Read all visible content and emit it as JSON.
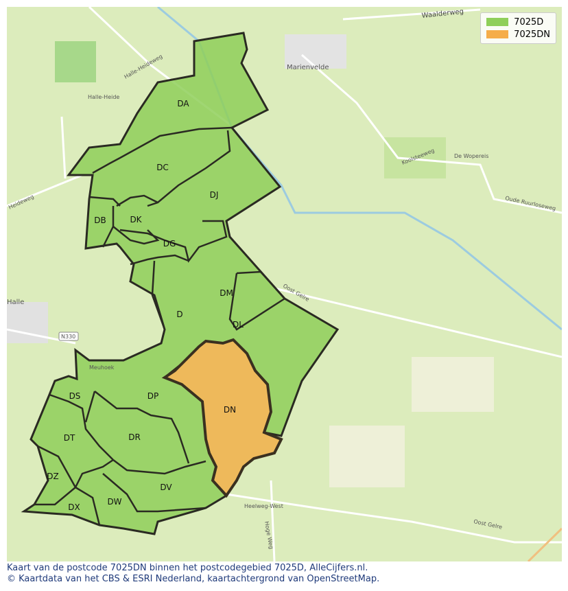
{
  "legend": [
    {
      "label": "7025D",
      "color": "#8fcf5a"
    },
    {
      "label": "7025DN",
      "color": "#f5ad4a"
    }
  ],
  "regions": [
    "DA",
    "DC",
    "DJ",
    "DB",
    "DK",
    "DG",
    "D",
    "DM",
    "DL",
    "DN",
    "DS",
    "DP",
    "DT",
    "DR",
    "DZ",
    "DV",
    "DX",
    "DW"
  ],
  "place_labels": {
    "waalderweg": "Waalderweg",
    "marienvelde": "Marienvelde",
    "halle_heideweg": "Halle-Heideweg",
    "halle_heide": "Halle-Heide",
    "heideweg": "Heideweg",
    "koolsteeweg": "Koolsteeweg",
    "de_wopereis": "De Wopereis",
    "oude_ruurloseweg": "Oude Ruurloseweg",
    "oost_gelre_1": "Oost Gelre",
    "oost_gelre_2": "Oost Gelre",
    "halle": "Halle",
    "n330": "N330",
    "meuhoek": "Meuhoek",
    "heelweg_west": "Heelweg-West",
    "hoge_weg": "Hoge Weg"
  },
  "caption": {
    "line1": "Kaart van de postcode 7025DN binnen het postcodegebied 7025D, AlleCijfers.nl.",
    "line2": "© Kaartdata van het CBS & ESRI Nederland, kaartachtergrond van OpenStreetMap."
  }
}
